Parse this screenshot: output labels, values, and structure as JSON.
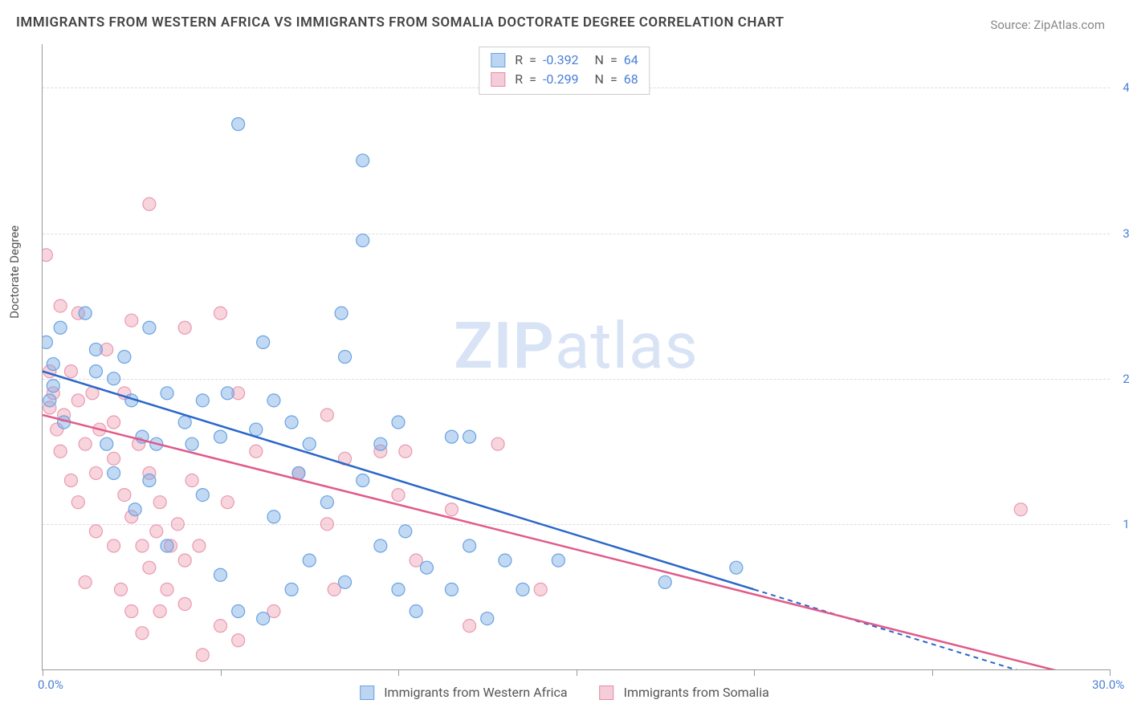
{
  "title": "IMMIGRANTS FROM WESTERN AFRICA VS IMMIGRANTS FROM SOMALIA DOCTORATE DEGREE CORRELATION CHART",
  "source_label": "Source: ZipAtlas.com",
  "watermark": {
    "bold": "ZIP",
    "light": "atlas"
  },
  "y_axis_title": "Doctorate Degree",
  "x_range": [
    0,
    30
  ],
  "y_range": [
    0,
    4.3
  ],
  "x_ticks": [
    0,
    5,
    10,
    15,
    20,
    25,
    30
  ],
  "x_tick_labels": {
    "0": "0.0%",
    "30": "30.0%"
  },
  "y_gridlines": [
    1.0,
    2.0,
    3.0,
    4.0
  ],
  "y_tick_labels": {
    "1": "1.0%",
    "2": "2.0%",
    "3": "3.0%",
    "4": "4.0%"
  },
  "series": [
    {
      "name": "Immigrants from Western Africa",
      "color_fill": "rgba(120,170,230,0.45)",
      "color_stroke": "#6aa3e0",
      "swatch_fill": "#bcd5f2",
      "swatch_border": "#6aa3e0",
      "line_color": "#2a66c9",
      "R": "-0.392",
      "N": "64",
      "trend": {
        "x0": 0,
        "y0": 2.05,
        "x1_solid": 20,
        "y1_solid": 0.55,
        "x1_dash": 30,
        "y1_dash": -0.2
      },
      "points": [
        [
          0.1,
          2.25
        ],
        [
          0.2,
          1.85
        ],
        [
          0.3,
          2.1
        ],
        [
          0.3,
          1.95
        ],
        [
          0.5,
          2.35
        ],
        [
          0.6,
          1.7
        ],
        [
          1.2,
          2.45
        ],
        [
          1.5,
          2.05
        ],
        [
          1.5,
          2.2
        ],
        [
          1.8,
          1.55
        ],
        [
          2.0,
          2.0
        ],
        [
          2.0,
          1.35
        ],
        [
          2.3,
          2.15
        ],
        [
          2.5,
          1.85
        ],
        [
          2.6,
          1.1
        ],
        [
          2.8,
          1.6
        ],
        [
          3.0,
          2.35
        ],
        [
          3.0,
          1.3
        ],
        [
          3.2,
          1.55
        ],
        [
          3.5,
          1.9
        ],
        [
          3.5,
          0.85
        ],
        [
          4.0,
          1.7
        ],
        [
          4.2,
          1.55
        ],
        [
          4.5,
          1.85
        ],
        [
          4.5,
          1.2
        ],
        [
          5.0,
          1.6
        ],
        [
          5.0,
          0.65
        ],
        [
          5.2,
          1.9
        ],
        [
          5.5,
          0.4
        ],
        [
          5.5,
          3.75
        ],
        [
          6.0,
          1.65
        ],
        [
          6.2,
          0.35
        ],
        [
          6.2,
          2.25
        ],
        [
          6.5,
          1.85
        ],
        [
          6.5,
          1.05
        ],
        [
          7.0,
          0.55
        ],
        [
          7.0,
          1.7
        ],
        [
          7.2,
          1.35
        ],
        [
          7.5,
          0.75
        ],
        [
          7.5,
          1.55
        ],
        [
          8.0,
          1.15
        ],
        [
          8.4,
          2.45
        ],
        [
          8.5,
          0.6
        ],
        [
          8.5,
          2.15
        ],
        [
          9.0,
          1.3
        ],
        [
          9.0,
          3.5
        ],
        [
          9.0,
          2.95
        ],
        [
          9.5,
          0.85
        ],
        [
          9.5,
          1.55
        ],
        [
          10.0,
          1.7
        ],
        [
          10.0,
          0.55
        ],
        [
          10.2,
          0.95
        ],
        [
          10.5,
          0.4
        ],
        [
          10.8,
          0.7
        ],
        [
          11.5,
          0.55
        ],
        [
          11.5,
          1.6
        ],
        [
          12.0,
          0.85
        ],
        [
          12.0,
          1.6
        ],
        [
          12.5,
          0.35
        ],
        [
          13.0,
          0.75
        ],
        [
          13.5,
          0.55
        ],
        [
          14.5,
          0.75
        ],
        [
          17.5,
          0.6
        ],
        [
          19.5,
          0.7
        ]
      ]
    },
    {
      "name": "Immigrants from Somalia",
      "color_fill": "rgba(240,160,180,0.45)",
      "color_stroke": "#e89ab2",
      "swatch_fill": "#f5cdd9",
      "swatch_border": "#e58ca8",
      "line_color": "#e05a8a",
      "R": "-0.299",
      "N": "68",
      "trend": {
        "x0": 0,
        "y0": 1.75,
        "x1_solid": 30,
        "y1_solid": -0.1,
        "x1_dash": 30,
        "y1_dash": -0.1
      },
      "points": [
        [
          0.1,
          2.85
        ],
        [
          0.2,
          1.8
        ],
        [
          0.2,
          2.05
        ],
        [
          0.3,
          1.9
        ],
        [
          0.4,
          1.65
        ],
        [
          0.5,
          2.5
        ],
        [
          0.5,
          1.5
        ],
        [
          0.6,
          1.75
        ],
        [
          0.8,
          2.05
        ],
        [
          0.8,
          1.3
        ],
        [
          1.0,
          1.85
        ],
        [
          1.0,
          2.45
        ],
        [
          1.0,
          1.15
        ],
        [
          1.2,
          1.55
        ],
        [
          1.2,
          0.6
        ],
        [
          1.4,
          1.9
        ],
        [
          1.5,
          1.35
        ],
        [
          1.5,
          0.95
        ],
        [
          1.6,
          1.65
        ],
        [
          1.8,
          2.2
        ],
        [
          2.0,
          1.45
        ],
        [
          2.0,
          0.85
        ],
        [
          2.0,
          1.7
        ],
        [
          2.2,
          0.55
        ],
        [
          2.3,
          1.2
        ],
        [
          2.3,
          1.9
        ],
        [
          2.5,
          1.05
        ],
        [
          2.5,
          0.4
        ],
        [
          2.5,
          2.4
        ],
        [
          2.7,
          1.55
        ],
        [
          2.8,
          0.85
        ],
        [
          2.8,
          0.25
        ],
        [
          3.0,
          1.35
        ],
        [
          3.0,
          3.2
        ],
        [
          3.0,
          0.7
        ],
        [
          3.2,
          0.95
        ],
        [
          3.3,
          1.15
        ],
        [
          3.3,
          0.4
        ],
        [
          3.5,
          0.55
        ],
        [
          3.6,
          0.85
        ],
        [
          3.8,
          1.0
        ],
        [
          4.0,
          0.45
        ],
        [
          4.0,
          0.75
        ],
        [
          4.0,
          2.35
        ],
        [
          4.2,
          1.3
        ],
        [
          4.4,
          0.85
        ],
        [
          4.5,
          0.1
        ],
        [
          5.0,
          2.45
        ],
        [
          5.0,
          0.3
        ],
        [
          5.2,
          1.15
        ],
        [
          5.5,
          0.2
        ],
        [
          5.5,
          1.9
        ],
        [
          6.0,
          1.5
        ],
        [
          6.5,
          0.4
        ],
        [
          7.2,
          1.35
        ],
        [
          8.0,
          1.75
        ],
        [
          8.0,
          1.0
        ],
        [
          8.2,
          0.55
        ],
        [
          8.5,
          1.45
        ],
        [
          9.5,
          1.5
        ],
        [
          10.0,
          1.2
        ],
        [
          10.2,
          1.5
        ],
        [
          10.5,
          0.75
        ],
        [
          11.5,
          1.1
        ],
        [
          12.8,
          1.55
        ],
        [
          12.0,
          0.3
        ],
        [
          14.0,
          0.55
        ],
        [
          27.5,
          1.1
        ]
      ]
    }
  ],
  "stats_label_R": "R",
  "stats_label_N": "N",
  "marker_radius": 8,
  "marker_stroke_width": 1.2,
  "trend_line_width": 2.5
}
